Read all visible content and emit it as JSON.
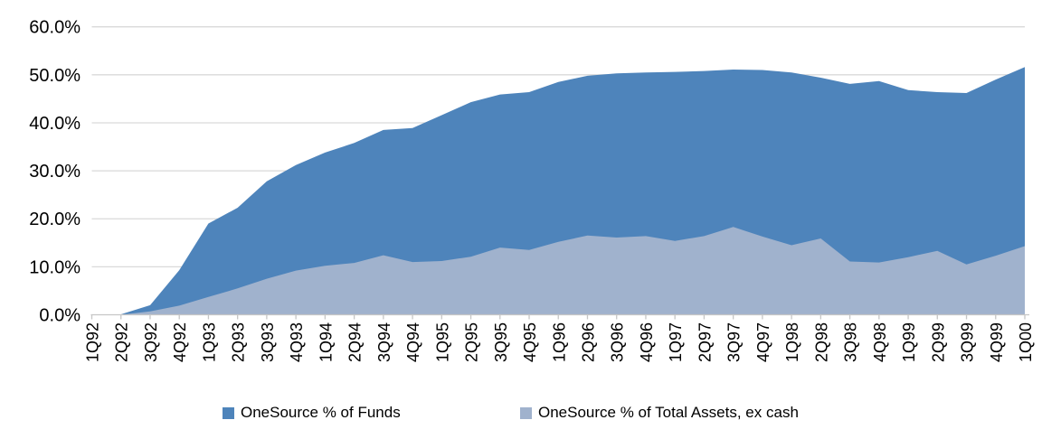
{
  "chart_data": {
    "type": "area",
    "title": "",
    "stacked": false,
    "grid": true,
    "legend_position": "bottom",
    "categories": [
      "1Q92",
      "2Q92",
      "3Q92",
      "4Q92",
      "1Q93",
      "2Q93",
      "3Q93",
      "4Q93",
      "1Q94",
      "2Q94",
      "3Q94",
      "4Q94",
      "1Q95",
      "2Q95",
      "3Q95",
      "4Q95",
      "1Q96",
      "2Q96",
      "3Q96",
      "4Q96",
      "1Q97",
      "2Q97",
      "3Q97",
      "4Q97",
      "1Q98",
      "2Q98",
      "3Q98",
      "4Q98",
      "1Q99",
      "2Q99",
      "3Q99",
      "4Q99",
      "1Q00"
    ],
    "series": [
      {
        "name": "OneSource % of Funds",
        "color": "#4E84BB",
        "values": [
          0.0,
          0.1,
          2.0,
          9.3,
          19.0,
          22.3,
          27.8,
          31.2,
          33.8,
          35.8,
          38.5,
          38.9,
          41.6,
          44.3,
          45.9,
          46.4,
          48.5,
          49.8,
          50.3,
          50.5,
          50.6,
          50.8,
          51.1,
          51.0,
          50.5,
          49.4,
          48.1,
          48.7,
          46.8,
          46.4,
          46.2,
          49.0,
          51.6
        ]
      },
      {
        "name": "OneSource % of Total Assets, ex cash",
        "color": "#A0B2CD",
        "values": [
          0.0,
          0.0,
          0.7,
          1.9,
          3.7,
          5.5,
          7.5,
          9.2,
          10.2,
          10.8,
          12.4,
          11.0,
          11.2,
          12.1,
          14.0,
          13.5,
          15.2,
          16.5,
          16.1,
          16.4,
          15.4,
          16.4,
          18.3,
          16.3,
          14.5,
          15.9,
          11.1,
          10.9,
          12.0,
          13.3,
          10.5,
          12.3,
          14.3
        ]
      }
    ],
    "y_axis": {
      "min": 0,
      "max": 60,
      "tick_step": 10,
      "tick_labels": [
        "0.0%",
        "10.0%",
        "20.0%",
        "30.0%",
        "40.0%",
        "50.0%",
        "60.0%"
      ]
    }
  },
  "colors": {
    "gridline": "#d9d9d9",
    "axis": "#c6c6c6",
    "text": "#000000",
    "background": "#ffffff"
  }
}
